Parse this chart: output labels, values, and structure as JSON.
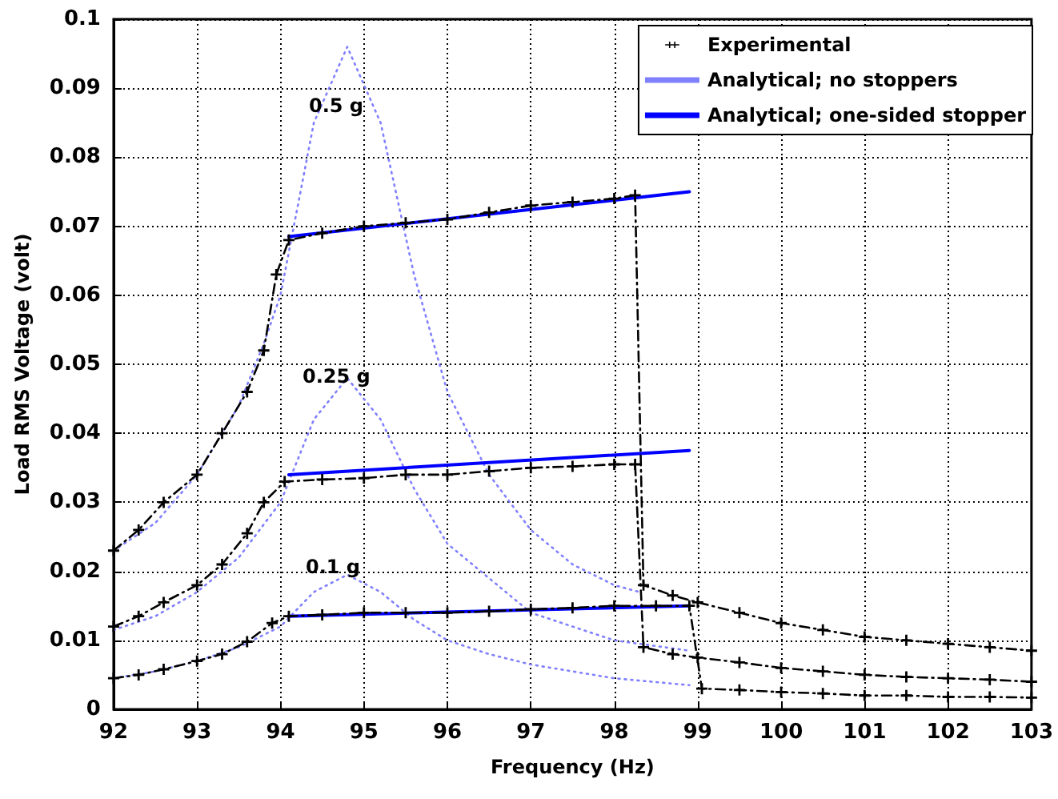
{
  "chart_data": {
    "type": "line",
    "xlabel": "Frequency (Hz)",
    "ylabel": "Load RMS Voltage (volt)",
    "xlim": [
      92,
      103
    ],
    "xticks": [
      92,
      93,
      94,
      95,
      96,
      97,
      98,
      99,
      100,
      101,
      102,
      103
    ],
    "ylim": [
      0,
      0.1
    ],
    "yticks": [
      0,
      0.01,
      0.02,
      0.03,
      0.04,
      0.05,
      0.06,
      0.07,
      0.08,
      0.09,
      0.1
    ],
    "grid": true,
    "legend": "top right",
    "annotations": [
      "0.5 g",
      "0.25 g",
      "0.1 g"
    ],
    "series": [
      {
        "name": "Experimental",
        "color": "#000000",
        "marker": "cross",
        "line_style": "dashed",
        "x": [
          92,
          92.3,
          92.6,
          93,
          93.3,
          93.6,
          93.8,
          93.95,
          94.1,
          94.5,
          95,
          95.5,
          96,
          96.5,
          97,
          97.5,
          98,
          98.25,
          98.35,
          98.7,
          99,
          99.5,
          100,
          100.5,
          101,
          101.5,
          102,
          102.5,
          103
        ],
        "values": [
          0.023,
          0.026,
          0.03,
          0.034,
          0.04,
          0.046,
          0.052,
          0.063,
          0.068,
          0.069,
          0.07,
          0.0705,
          0.071,
          0.072,
          0.073,
          0.0735,
          0.074,
          0.0745,
          0.018,
          0.0165,
          0.0155,
          0.014,
          0.0125,
          0.0115,
          0.0105,
          0.01,
          0.0095,
          0.009,
          0.0085
        ]
      },
      {
        "color": "#000000",
        "marker": "cross",
        "line_style": "dashed",
        "x": [
          92,
          92.3,
          92.6,
          93,
          93.3,
          93.6,
          93.8,
          94.05,
          94.5,
          95,
          95.5,
          96,
          96.5,
          97,
          97.5,
          98,
          98.25,
          98.35,
          98.7,
          99,
          99.5,
          100,
          100.5,
          101,
          101.5,
          102,
          102.5,
          103
        ],
        "values": [
          0.012,
          0.0135,
          0.0155,
          0.018,
          0.021,
          0.0255,
          0.03,
          0.033,
          0.0333,
          0.0335,
          0.034,
          0.034,
          0.0345,
          0.035,
          0.0352,
          0.0355,
          0.0355,
          0.009,
          0.008,
          0.0075,
          0.0068,
          0.006,
          0.0055,
          0.005,
          0.0047,
          0.0045,
          0.0043,
          0.004
        ]
      },
      {
        "color": "#000000",
        "marker": "cross",
        "line_style": "dashed",
        "x": [
          92,
          92.3,
          92.6,
          93,
          93.3,
          93.6,
          93.9,
          94.1,
          94.5,
          95,
          95.5,
          96,
          96.5,
          97,
          97.5,
          98,
          98.5,
          98.9,
          99.05,
          99.5,
          100,
          100.5,
          101,
          101.5,
          102,
          102.5,
          103
        ],
        "values": [
          0.0045,
          0.005,
          0.0058,
          0.007,
          0.008,
          0.0098,
          0.0125,
          0.0135,
          0.0137,
          0.014,
          0.014,
          0.014,
          0.0142,
          0.0145,
          0.0147,
          0.015,
          0.015,
          0.015,
          0.003,
          0.0028,
          0.0025,
          0.0023,
          0.002,
          0.002,
          0.0018,
          0.0018,
          0.0017
        ]
      },
      {
        "name": "Analytical; no stoppers",
        "color": "#8080ff",
        "marker": "none",
        "line_style": "dotted",
        "x": [
          92,
          92.5,
          93,
          93.5,
          93.8,
          94,
          94.4,
          94.8,
          95.2,
          95.6,
          96,
          96.5,
          97,
          97.5,
          98,
          98.3
        ],
        "values": [
          0.023,
          0.027,
          0.034,
          0.044,
          0.053,
          0.06,
          0.085,
          0.096,
          0.085,
          0.063,
          0.046,
          0.034,
          0.026,
          0.021,
          0.018,
          0.017
        ]
      },
      {
        "color": "#8080ff",
        "marker": "none",
        "line_style": "dotted",
        "x": [
          92,
          92.5,
          93,
          93.5,
          94,
          94.4,
          94.8,
          95.2,
          95.6,
          96,
          96.5,
          97,
          97.5,
          98,
          98.9
        ],
        "values": [
          0.0115,
          0.0135,
          0.017,
          0.022,
          0.03,
          0.042,
          0.048,
          0.042,
          0.032,
          0.024,
          0.019,
          0.014,
          0.012,
          0.01,
          0.0085
        ]
      },
      {
        "color": "#8080ff",
        "marker": "none",
        "line_style": "dotted",
        "x": [
          92,
          92.5,
          93,
          93.5,
          94,
          94.4,
          94.8,
          95.2,
          95.6,
          96,
          96.5,
          97,
          97.5,
          98,
          98.9
        ],
        "values": [
          0.0045,
          0.0055,
          0.007,
          0.009,
          0.012,
          0.017,
          0.0195,
          0.017,
          0.013,
          0.01,
          0.008,
          0.0065,
          0.0055,
          0.0045,
          0.0035
        ]
      },
      {
        "name": "Analytical; one-sided stopper",
        "color": "#0000ff",
        "marker": "none",
        "line_style": "solid",
        "x": [
          94.1,
          98.9
        ],
        "values": [
          0.0685,
          0.075
        ]
      },
      {
        "color": "#0000ff",
        "marker": "none",
        "line_style": "solid",
        "x": [
          94.1,
          98.9
        ],
        "values": [
          0.034,
          0.0375
        ]
      },
      {
        "color": "#0000ff",
        "marker": "none",
        "line_style": "solid",
        "x": [
          94.1,
          98.9
        ],
        "values": [
          0.0135,
          0.015
        ]
      }
    ]
  }
}
